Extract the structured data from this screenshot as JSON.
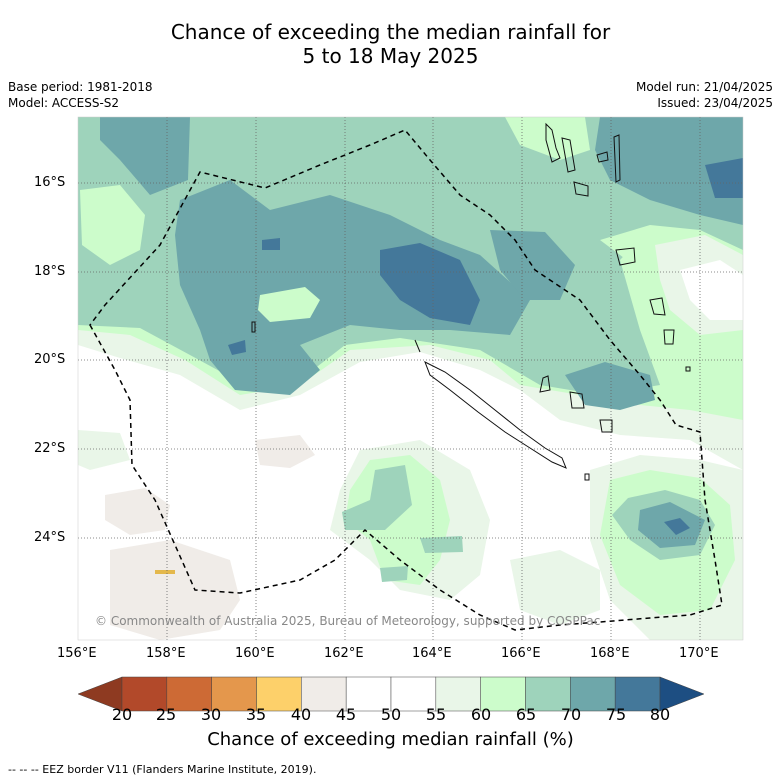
{
  "title": {
    "line1": "Chance of exceeding the median rainfall for",
    "line2": "5 to 18 May 2025"
  },
  "meta": {
    "base_period": "Base period: 1981-2018",
    "model": "Model: ACCESS-S2",
    "model_run": "Model run: 21/04/2025",
    "issued": "Issued: 23/04/2025"
  },
  "map": {
    "lat_labels": [
      "16°S",
      "18°S",
      "20°S",
      "22°S",
      "24°S"
    ],
    "lon_labels": [
      "156°E",
      "158°E",
      "160°E",
      "162°E",
      "164°E",
      "166°E",
      "168°E",
      "170°E"
    ],
    "copyright": "© Commonwealth of Australia 2025, Bureau of Meteorology, supported by COSPPac"
  },
  "colorbar": {
    "ticks": [
      "20",
      "25",
      "30",
      "35",
      "40",
      "45",
      "50",
      "55",
      "60",
      "65",
      "70",
      "75",
      "80"
    ],
    "colors": [
      "#b2492a",
      "#cd6a35",
      "#e4974c",
      "#fdd06a",
      "#f0ece8",
      "#ffffff",
      "#ffffff",
      "#e9f6e8",
      "#ccfccb",
      "#9ed3bb",
      "#6ea7aa",
      "#44789a"
    ],
    "low_extend_color": "#8e3a21",
    "high_extend_color": "#1d4e82",
    "label": "Chance of exceeding median rainfall (%)"
  },
  "footer": "--  --  -- EEZ border V11 (Flanders Marine Institute, 2019)."
}
